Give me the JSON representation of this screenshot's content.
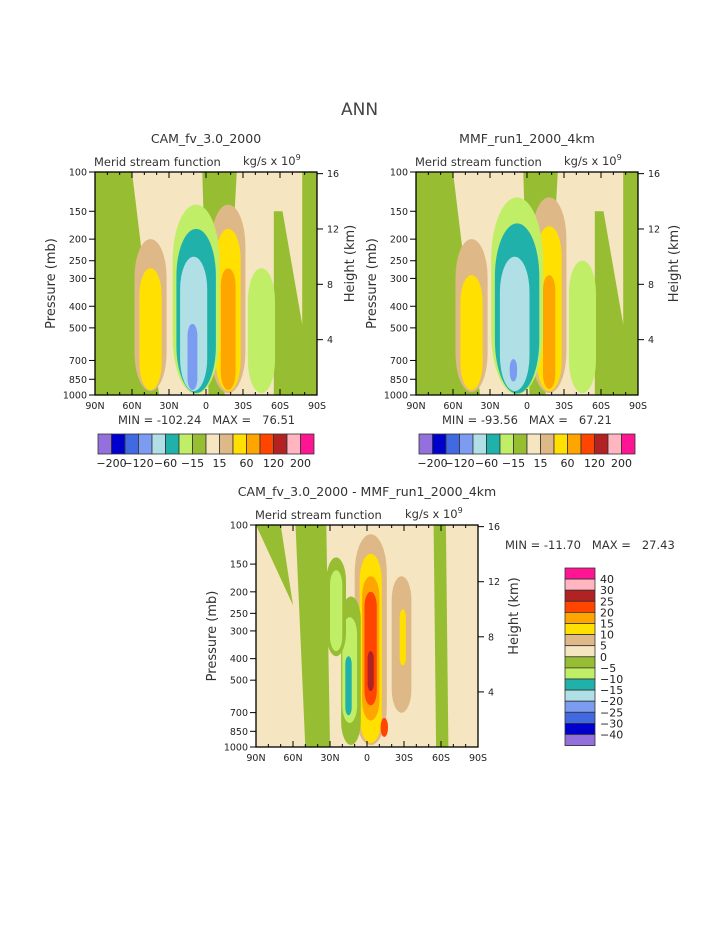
{
  "figure": {
    "title": "ANN"
  },
  "level_colors": [
    "#9370DB",
    "#0000CD",
    "#4169E1",
    "#7B9CF0",
    "#B0E0E6",
    "#20B2AA",
    "#C0EE66",
    "#97BE32",
    "#F5E5C0",
    "#DEB887",
    "#FFE000",
    "#FFA500",
    "#FF4500",
    "#B22222",
    "#FFB6C1",
    "#FF1493"
  ],
  "chart_data": [
    {
      "type": "heatmap",
      "subtype": "filled-contour",
      "title": "CAM_fv_3.0_2000",
      "left_label": "Merid stream function",
      "right_label": "kg/s x 10",
      "right_label_exp": "9",
      "ylabel": "Pressure (mb)",
      "ylabel_right": "Height (km)",
      "xticks": [
        "90N",
        "60N",
        "30N",
        "0",
        "30S",
        "60S",
        "90S"
      ],
      "yticks": [
        "100",
        "150",
        "200",
        "250",
        "300",
        "400",
        "500",
        "700",
        "850",
        "1000"
      ],
      "ytick_values": [
        100,
        150,
        200,
        250,
        300,
        400,
        500,
        700,
        850,
        1000
      ],
      "yticks_right": [
        "16",
        "12",
        "8",
        "4"
      ],
      "ytick_right_values": [
        16,
        12,
        8,
        4
      ],
      "xlim": [
        90,
        -90
      ],
      "ylim": [
        1000,
        100
      ],
      "stats": {
        "min_label": "MIN =",
        "min": "-102.24",
        "max_label": "MAX =",
        "max": "76.51"
      },
      "colorbar": {
        "orientation": "horizontal",
        "labels": [
          "-200",
          "-120",
          "-60",
          "-15",
          "15",
          "60",
          "120",
          "200"
        ]
      },
      "features": [
        {
          "lat": -18,
          "p_top": 140,
          "p_bot": 980,
          "width": 14,
          "level": 9
        },
        {
          "lat": -18,
          "p_top": 180,
          "p_bot": 960,
          "width": 10,
          "level": 10
        },
        {
          "lat": -18,
          "p_top": 270,
          "p_bot": 950,
          "width": 6,
          "level": 11
        },
        {
          "lat": 8,
          "p_top": 140,
          "p_bot": 990,
          "width": 19,
          "level": 6
        },
        {
          "lat": 8,
          "p_top": 180,
          "p_bot": 980,
          "width": 16,
          "level": 5
        },
        {
          "lat": 10,
          "p_top": 240,
          "p_bot": 960,
          "width": 11,
          "level": 4
        },
        {
          "lat": 11,
          "p_top": 480,
          "p_bot": 950,
          "width": 4,
          "level": 3
        },
        {
          "lat": 45,
          "p_top": 200,
          "p_bot": 960,
          "width": 13,
          "level": 9
        },
        {
          "lat": 45,
          "p_top": 270,
          "p_bot": 950,
          "width": 9,
          "level": 10
        },
        {
          "lat": -45,
          "p_top": 270,
          "p_bot": 980,
          "width": 11,
          "level": 6
        }
      ]
    },
    {
      "type": "heatmap",
      "subtype": "filled-contour",
      "title": "MMF_run1_2000_4km",
      "left_label": "Merid stream function",
      "right_label": "kg/s x 10",
      "right_label_exp": "9",
      "ylabel": "Pressure (mb)",
      "ylabel_right": "Height (km)",
      "xticks": [
        "90N",
        "60N",
        "30N",
        "0",
        "30S",
        "60S",
        "90S"
      ],
      "yticks": [
        "100",
        "150",
        "200",
        "250",
        "300",
        "400",
        "500",
        "700",
        "850",
        "1000"
      ],
      "ytick_values": [
        100,
        150,
        200,
        250,
        300,
        400,
        500,
        700,
        850,
        1000
      ],
      "yticks_right": [
        "16",
        "12",
        "8",
        "4"
      ],
      "ytick_right_values": [
        16,
        12,
        8,
        4
      ],
      "xlim": [
        90,
        -90
      ],
      "ylim": [
        1000,
        100
      ],
      "stats": {
        "min_label": "MIN =",
        "min": "-93.56",
        "max_label": "MAX =",
        "max": "67.21"
      },
      "colorbar": {
        "orientation": "horizontal",
        "labels": [
          "-200",
          "-120",
          "-60",
          "-15",
          "15",
          "60",
          "120",
          "200"
        ]
      },
      "features": [
        {
          "lat": -18,
          "p_top": 130,
          "p_bot": 980,
          "width": 14,
          "level": 9
        },
        {
          "lat": -18,
          "p_top": 175,
          "p_bot": 960,
          "width": 10,
          "level": 10
        },
        {
          "lat": -18,
          "p_top": 290,
          "p_bot": 940,
          "width": 5,
          "level": 11
        },
        {
          "lat": 8,
          "p_top": 130,
          "p_bot": 995,
          "width": 21,
          "level": 6
        },
        {
          "lat": 8,
          "p_top": 170,
          "p_bot": 985,
          "width": 18,
          "level": 5
        },
        {
          "lat": 10,
          "p_top": 240,
          "p_bot": 960,
          "width": 12,
          "level": 4
        },
        {
          "lat": 11,
          "p_top": 690,
          "p_bot": 870,
          "width": 3,
          "level": 3
        },
        {
          "lat": 45,
          "p_top": 200,
          "p_bot": 970,
          "width": 13,
          "level": 9
        },
        {
          "lat": 45,
          "p_top": 290,
          "p_bot": 950,
          "width": 9,
          "level": 10
        },
        {
          "lat": -45,
          "p_top": 250,
          "p_bot": 980,
          "width": 11,
          "level": 6
        }
      ]
    },
    {
      "type": "heatmap",
      "subtype": "filled-contour",
      "title": "CAM_fv_3.0_2000 - MMF_run1_2000_4km",
      "left_label": "Merid stream function",
      "right_label": "kg/s x 10",
      "right_label_exp": "9",
      "ylabel": "Pressure (mb)",
      "ylabel_right": "Height (km)",
      "xticks": [
        "90N",
        "60N",
        "30N",
        "0",
        "30S",
        "60S",
        "90S"
      ],
      "yticks": [
        "100",
        "150",
        "200",
        "250",
        "300",
        "400",
        "500",
        "700",
        "850",
        "1000"
      ],
      "ytick_values": [
        100,
        150,
        200,
        250,
        300,
        400,
        500,
        700,
        850,
        1000
      ],
      "yticks_right": [
        "16",
        "12",
        "8",
        "4"
      ],
      "ytick_right_values": [
        16,
        12,
        8,
        4
      ],
      "xlim": [
        90,
        -90
      ],
      "ylim": [
        1000,
        100
      ],
      "stats": {
        "min_label": "MIN =",
        "min": "-11.70",
        "max_label": "MAX =",
        "max": "27.43"
      },
      "colorbar": {
        "orientation": "vertical",
        "labels": [
          "40",
          "30",
          "25",
          "20",
          "15",
          "10",
          "5",
          "0",
          "-5",
          "-10",
          "-15",
          "-20",
          "-25",
          "-30",
          "-40"
        ]
      },
      "features": [
        {
          "lat": -3,
          "p_top": 110,
          "p_bot": 980,
          "width": 13,
          "level": 9
        },
        {
          "lat": -3,
          "p_top": 135,
          "p_bot": 960,
          "width": 9,
          "level": 10
        },
        {
          "lat": -3,
          "p_top": 170,
          "p_bot": 760,
          "width": 7,
          "level": 11
        },
        {
          "lat": -3,
          "p_top": 200,
          "p_bot": 650,
          "width": 5,
          "level": 12
        },
        {
          "lat": -3,
          "p_top": 370,
          "p_bot": 560,
          "width": 2.5,
          "level": 13
        },
        {
          "lat": -14,
          "p_top": 740,
          "p_bot": 900,
          "width": 3,
          "level": 12
        },
        {
          "lat": -28,
          "p_top": 170,
          "p_bot": 700,
          "width": 8,
          "level": 9
        },
        {
          "lat": -29,
          "p_top": 240,
          "p_bot": 430,
          "width": 2.5,
          "level": 10
        },
        {
          "lat": 13,
          "p_top": 210,
          "p_bot": 980,
          "width": 8,
          "level": 7
        },
        {
          "lat": 14,
          "p_top": 260,
          "p_bot": 780,
          "width": 6,
          "level": 6
        },
        {
          "lat": 15,
          "p_top": 390,
          "p_bot": 720,
          "width": 2.6,
          "level": 5
        },
        {
          "lat": 25,
          "p_top": 140,
          "p_bot": 390,
          "width": 8,
          "level": 7
        },
        {
          "lat": 25,
          "p_top": 160,
          "p_bot": 370,
          "width": 5,
          "level": 6
        }
      ]
    }
  ]
}
